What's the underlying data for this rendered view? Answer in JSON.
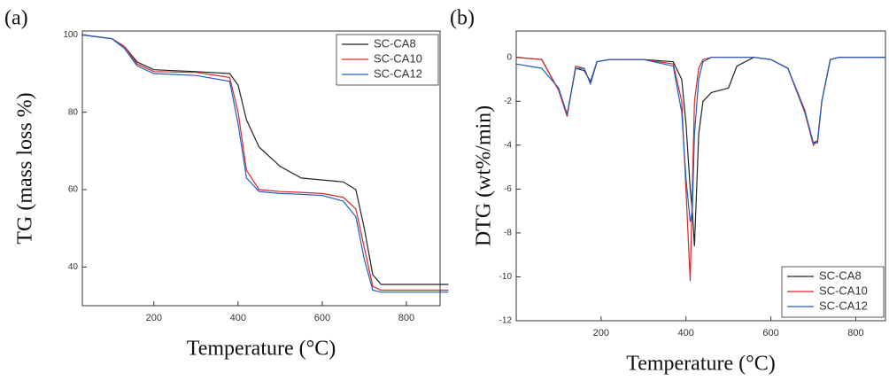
{
  "chart_data": [
    {
      "type": "line",
      "panel_label": "(a)",
      "x_label": "Temperature (°C)",
      "y_label": "TG (mass loss %)",
      "xlim": [
        30,
        880
      ],
      "ylim": [
        30,
        101
      ],
      "xticks": [
        200,
        400,
        600,
        800
      ],
      "yticks": [
        40,
        60,
        80,
        100
      ],
      "legend": "upper right",
      "x": [
        30,
        100,
        130,
        160,
        200,
        300,
        380,
        400,
        420,
        450,
        500,
        550,
        600,
        650,
        680,
        700,
        720,
        740,
        900
      ],
      "series": [
        {
          "name": "SC-CA8",
          "color": "#222222",
          "values": [
            100,
            99,
            97,
            93,
            91,
            90.5,
            90,
            87,
            78,
            71,
            66,
            63,
            62.5,
            62,
            60,
            50,
            38,
            35.5,
            35.5
          ]
        },
        {
          "name": "SC-CA10",
          "color": "#d62728",
          "values": [
            100,
            99,
            97,
            92.5,
            90.5,
            90.3,
            89,
            80,
            65,
            60,
            59.5,
            59.3,
            59,
            58,
            55,
            45,
            35,
            34,
            34
          ]
        },
        {
          "name": "SC-CA12",
          "color": "#1f5fbf",
          "values": [
            100,
            99,
            96.5,
            92,
            90,
            89.5,
            88,
            77,
            63,
            59.5,
            59,
            58.8,
            58.5,
            57,
            53,
            42,
            34,
            33.5,
            33.5
          ]
        }
      ]
    },
    {
      "type": "line",
      "panel_label": "(b)",
      "x_label": "Temperature (°C)",
      "y_label": "DTG (wt%/min)",
      "xlim": [
        0,
        870
      ],
      "ylim": [
        -12,
        1.2
      ],
      "xticks": [
        200,
        400,
        600,
        800
      ],
      "yticks": [
        -12,
        -10,
        -8,
        -6,
        -4,
        -2,
        0
      ],
      "legend": "lower right",
      "x": [
        0,
        60,
        100,
        120,
        140,
        160,
        175,
        190,
        220,
        300,
        370,
        390,
        400,
        410,
        415,
        420,
        430,
        440,
        460,
        500,
        520,
        560,
        600,
        640,
        680,
        700,
        710,
        720,
        740,
        760,
        870
      ],
      "series": [
        {
          "name": "SC-CA8",
          "color": "#222222",
          "values": [
            0,
            -0.1,
            -1.5,
            -2.6,
            -0.5,
            -0.6,
            -1.1,
            -0.2,
            -0.1,
            -0.1,
            -0.2,
            -1.0,
            -3,
            -6,
            -7,
            -8.6,
            -3.5,
            -2,
            -1.6,
            -1.4,
            -0.4,
            0,
            -0.1,
            -0.5,
            -2.5,
            -3.9,
            -3.8,
            -2,
            -0.1,
            0,
            0
          ]
        },
        {
          "name": "SC-CA10",
          "color": "#d62728",
          "values": [
            0,
            -0.1,
            -1.5,
            -2.7,
            -0.4,
            -0.5,
            -1.2,
            -0.2,
            -0.1,
            -0.1,
            -0.3,
            -2,
            -6,
            -10.2,
            -6,
            -2,
            -0.5,
            -0.1,
            0,
            0,
            0,
            0,
            -0.1,
            -0.5,
            -2.5,
            -4,
            -3.8,
            -2,
            -0.1,
            0,
            0
          ]
        },
        {
          "name": "SC-CA12",
          "color": "#1f5fbf",
          "values": [
            -0.3,
            -0.5,
            -1.4,
            -2.6,
            -0.5,
            -0.5,
            -1.2,
            -0.2,
            -0.1,
            -0.1,
            -0.4,
            -2.5,
            -5.5,
            -7.5,
            -7,
            -3.5,
            -1,
            -0.2,
            0,
            0,
            0,
            0,
            -0.1,
            -0.5,
            -2.4,
            -3.9,
            -3.9,
            -2,
            -0.1,
            0,
            0
          ]
        }
      ]
    }
  ]
}
